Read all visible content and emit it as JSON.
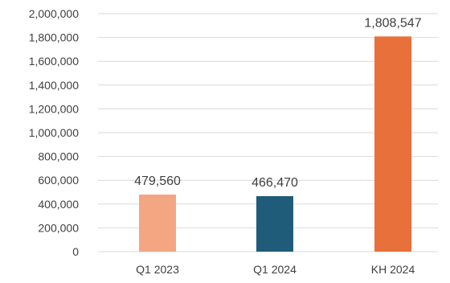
{
  "chart_data": {
    "type": "bar",
    "title": "",
    "xlabel": "",
    "ylabel": "",
    "categories": [
      "Q1 2023",
      "Q1 2024",
      "KH 2024"
    ],
    "values": [
      479560,
      466470,
      1808547
    ],
    "data_labels": [
      "479,560",
      "466,470",
      "1,808,547"
    ],
    "colors": [
      "#F4A582",
      "#1F5C7A",
      "#E8703A"
    ],
    "ylim": [
      0,
      2000000
    ],
    "yticks": [
      0,
      200000,
      400000,
      600000,
      800000,
      1000000,
      1200000,
      1400000,
      1600000,
      1800000,
      2000000
    ],
    "ytick_labels": [
      "0",
      "200,000",
      "400,000",
      "600,000",
      "800,000",
      "1,000,000",
      "1,200,000",
      "1,400,000",
      "1,600,000",
      "1,800,000",
      "2,000,000"
    ],
    "grid": true,
    "legend": "none"
  }
}
